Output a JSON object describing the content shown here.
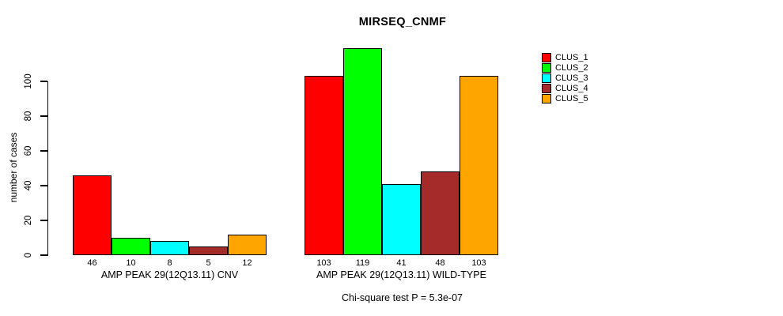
{
  "chart_data": {
    "type": "bar",
    "title": "MIRSEQ_CNMF",
    "ylabel": "number of cases",
    "xlabel": "",
    "categories": [
      "AMP PEAK 29(12Q13.11) CNV",
      "AMP PEAK 29(12Q13.11) WILD-TYPE"
    ],
    "series": [
      {
        "name": "CLUS_1",
        "color": "#ff0000",
        "values": [
          46,
          103
        ]
      },
      {
        "name": "CLUS_2",
        "color": "#00ff00",
        "values": [
          10,
          119
        ]
      },
      {
        "name": "CLUS_3",
        "color": "#00ffff",
        "values": [
          8,
          41
        ]
      },
      {
        "name": "CLUS_4",
        "color": "#a52a2a",
        "values": [
          5,
          48
        ]
      },
      {
        "name": "CLUS_5",
        "color": "#ffa500",
        "values": [
          12,
          103
        ]
      }
    ],
    "yticks": [
      0,
      20,
      40,
      60,
      80,
      100
    ],
    "ylim": [
      0,
      119
    ],
    "grid": false,
    "bar_value_labels_shown": true,
    "legend_position": "right",
    "note": "Chi-square test P = 5.3e-07"
  }
}
